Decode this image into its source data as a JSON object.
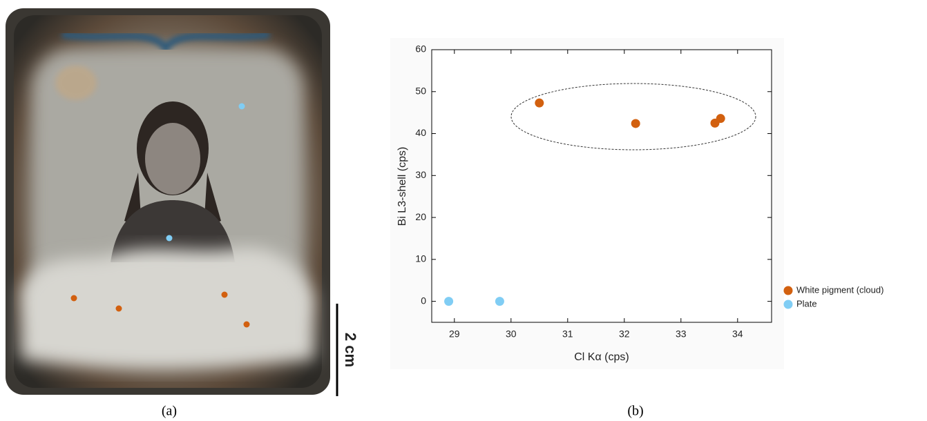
{
  "chart_data": {
    "type": "scatter",
    "xlabel": "Cl Kα (cps)",
    "ylabel": "Bi L3-shell (cps)",
    "xlim": [
      28.6,
      34.6
    ],
    "ylim": [
      -5,
      60
    ],
    "xticks": [
      29,
      30,
      31,
      32,
      33,
      34
    ],
    "yticks": [
      0,
      10,
      20,
      30,
      40,
      50,
      60
    ],
    "series": [
      {
        "name": "White pigment (cloud)",
        "color": "#d2600f",
        "x": [
          30.5,
          32.2,
          33.6,
          33.7
        ],
        "values": [
          47.3,
          42.4,
          42.5,
          43.6
        ]
      },
      {
        "name": "Plate",
        "color": "#80cdf4",
        "x": [
          28.9,
          29.8
        ],
        "values": [
          0,
          0
        ]
      }
    ]
  },
  "panel_labels": [
    "(a)",
    "(b)"
  ],
  "scale_bar_label": "2 cm"
}
